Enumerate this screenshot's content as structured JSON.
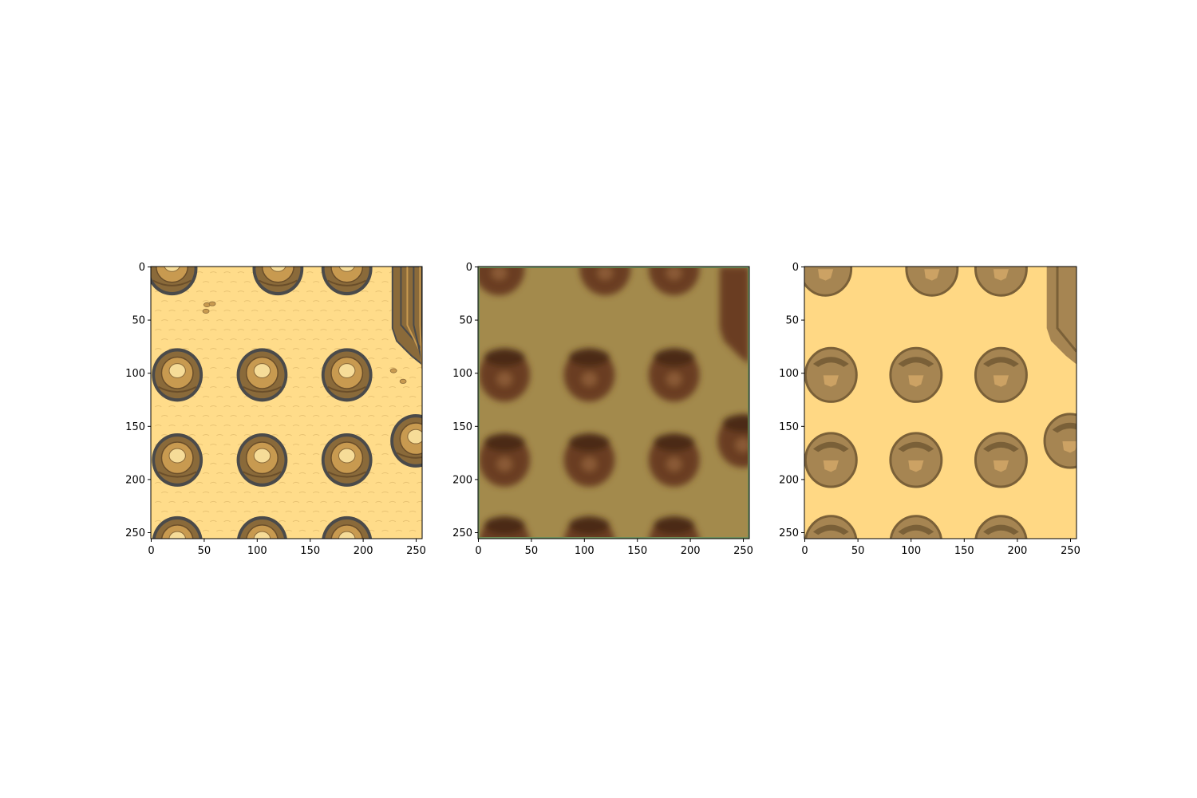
{
  "figure": {
    "panels": [
      {
        "name": "original",
        "style": "original",
        "sand": "#ffdc8a",
        "outline": "#4a4a4a",
        "rock": "#8a6a3a",
        "rock_light": "#c89a50",
        "highlight": "#f6dc98"
      },
      {
        "name": "blurred",
        "style": "blurred",
        "sand": "#a38a4c",
        "rock": "#6b3e22",
        "rock_dark": "#4b2a16",
        "highlight": "#8a5a36",
        "border": "#6f8f5a"
      },
      {
        "name": "quantized",
        "style": "quantized",
        "sand": "#ffd884",
        "rock": "#a68552",
        "rock_dark": "#7a6038",
        "highlight": "#cca264"
      }
    ],
    "axes": {
      "xlim": [
        0,
        256
      ],
      "ylim": [
        256,
        0
      ],
      "xticks": [
        "0",
        "50",
        "100",
        "150",
        "200",
        "250"
      ],
      "yticks": [
        "0",
        "50",
        "100",
        "150",
        "200",
        "250"
      ]
    },
    "boulders": [
      {
        "x": 20,
        "y": 0
      },
      {
        "x": 120,
        "y": 0
      },
      {
        "x": 185,
        "y": 0
      },
      {
        "x": 25,
        "y": 100
      },
      {
        "x": 105,
        "y": 100
      },
      {
        "x": 185,
        "y": 100
      },
      {
        "x": 25,
        "y": 180
      },
      {
        "x": 105,
        "y": 180
      },
      {
        "x": 185,
        "y": 180
      },
      {
        "x": 25,
        "y": 258
      },
      {
        "x": 105,
        "y": 258
      },
      {
        "x": 185,
        "y": 258
      },
      {
        "x": 250,
        "y": 162
      }
    ]
  }
}
